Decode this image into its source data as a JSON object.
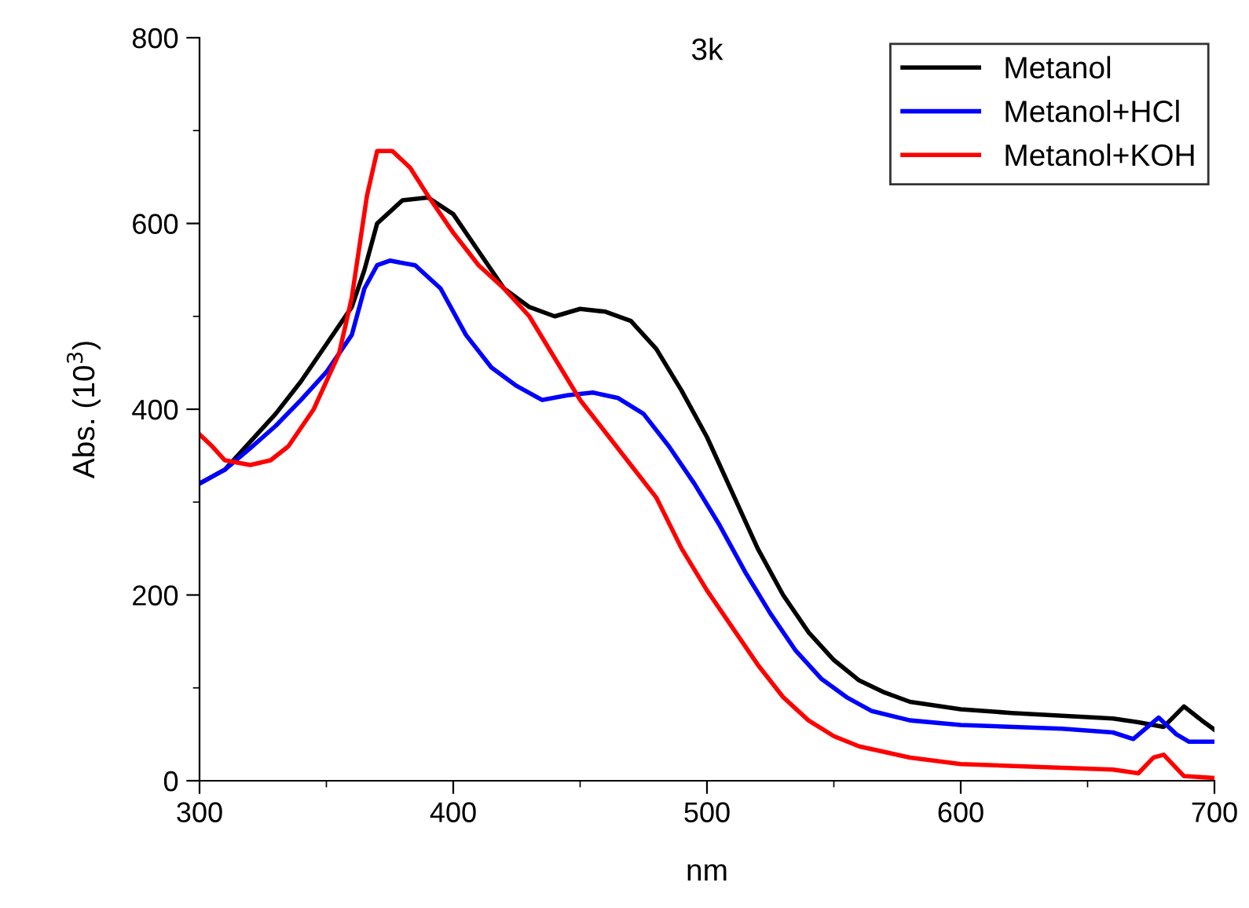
{
  "chart_data": {
    "type": "line",
    "title": "3k",
    "xlabel": "nm",
    "ylabel": "Abs. (10$^{3}$)",
    "xlim": [
      300,
      700
    ],
    "xticks": [
      300,
      400,
      500,
      600,
      700
    ],
    "ylim": [
      0,
      800
    ],
    "yticks": [
      0,
      200,
      400,
      600,
      800
    ],
    "legend": "top right",
    "grid": false,
    "line_style": "solid",
    "marker": "none",
    "series": [
      {
        "name": "Metanol",
        "color": "#000000",
        "x": [
          300,
          310,
          320,
          330,
          340,
          350,
          360,
          365,
          370,
          380,
          390,
          400,
          410,
          420,
          430,
          440,
          450,
          460,
          470,
          480,
          490,
          500,
          510,
          520,
          530,
          540,
          550,
          560,
          570,
          580,
          600,
          620,
          640,
          660,
          670,
          680,
          688,
          695,
          700
        ],
        "values": [
          320,
          335,
          365,
          395,
          430,
          470,
          510,
          550,
          600,
          625,
          628,
          610,
          570,
          530,
          510,
          500,
          508,
          505,
          495,
          465,
          420,
          370,
          310,
          250,
          200,
          160,
          130,
          108,
          95,
          85,
          77,
          73,
          70,
          67,
          63,
          58,
          80,
          65,
          55
        ]
      },
      {
        "name": "Metanol+HCl",
        "color": "#0000ff",
        "x": [
          300,
          310,
          320,
          330,
          340,
          350,
          360,
          365,
          370,
          375,
          385,
          395,
          405,
          415,
          425,
          435,
          445,
          455,
          465,
          475,
          485,
          495,
          505,
          515,
          525,
          535,
          545,
          555,
          565,
          580,
          600,
          640,
          660,
          668,
          678,
          685,
          690,
          700
        ],
        "values": [
          320,
          335,
          358,
          382,
          410,
          440,
          480,
          530,
          555,
          560,
          555,
          530,
          480,
          445,
          425,
          410,
          415,
          418,
          412,
          395,
          360,
          320,
          275,
          225,
          180,
          140,
          110,
          90,
          75,
          65,
          60,
          56,
          52,
          45,
          68,
          50,
          42,
          42
        ]
      },
      {
        "name": "Metanol+KOH",
        "color": "#ff0000",
        "x": [
          300,
          305,
          310,
          320,
          328,
          335,
          345,
          355,
          360,
          366,
          370,
          376,
          383,
          390,
          400,
          410,
          420,
          430,
          440,
          450,
          460,
          470,
          480,
          490,
          500,
          510,
          520,
          530,
          540,
          550,
          560,
          580,
          600,
          640,
          660,
          670,
          676,
          680,
          688,
          700
        ],
        "values": [
          373,
          360,
          345,
          340,
          345,
          360,
          400,
          460,
          520,
          630,
          678,
          678,
          660,
          630,
          590,
          555,
          530,
          500,
          455,
          410,
          375,
          340,
          305,
          250,
          205,
          165,
          125,
          90,
          65,
          48,
          37,
          25,
          18,
          14,
          12,
          8,
          25,
          28,
          5,
          3
        ]
      }
    ]
  }
}
